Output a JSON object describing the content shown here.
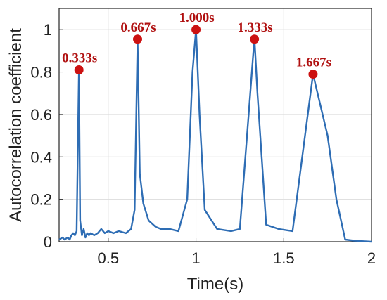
{
  "chart_data": {
    "type": "line",
    "xlabel": "Time(s)",
    "ylabel": "Autocorrelation coefficient",
    "xlim": [
      0.22,
      2.0
    ],
    "ylim": [
      0,
      1.1
    ],
    "x_ticks": [
      0.5,
      1,
      1.5,
      2
    ],
    "x_tick_labels": [
      "0.5",
      "1",
      "1.5",
      "2"
    ],
    "y_ticks": [
      0,
      0.2,
      0.4,
      0.6,
      0.8,
      1
    ],
    "y_tick_labels": [
      "0",
      "0.2",
      "0.4",
      "0.6",
      "0.8",
      "1"
    ],
    "grid": true,
    "line_color": "#2e6db4",
    "marker_color": "#cc1111",
    "label_color": "#b01010",
    "series": [
      {
        "x": [
          0.22,
          0.24,
          0.25,
          0.27,
          0.28,
          0.29,
          0.3,
          0.31,
          0.32,
          0.333,
          0.34,
          0.35,
          0.36,
          0.37,
          0.38,
          0.39,
          0.4,
          0.42,
          0.44,
          0.46,
          0.48,
          0.5,
          0.53,
          0.56,
          0.6,
          0.63,
          0.65,
          0.667,
          0.68,
          0.7,
          0.73,
          0.77,
          0.8,
          0.85,
          0.9,
          0.95,
          0.98,
          1.0,
          1.02,
          1.05,
          1.12,
          1.2,
          1.25,
          1.3,
          1.333,
          1.35,
          1.4,
          1.47,
          1.55,
          1.667,
          1.75,
          1.8,
          1.85,
          1.9,
          2.0
        ],
        "y": [
          0.01,
          0.02,
          0.01,
          0.02,
          0.01,
          0.03,
          0.04,
          0.03,
          0.05,
          0.81,
          0.1,
          0.03,
          0.06,
          0.02,
          0.04,
          0.03,
          0.04,
          0.03,
          0.04,
          0.06,
          0.04,
          0.05,
          0.04,
          0.05,
          0.04,
          0.06,
          0.15,
          0.95,
          0.32,
          0.18,
          0.1,
          0.07,
          0.06,
          0.06,
          0.05,
          0.2,
          0.8,
          1.0,
          0.6,
          0.15,
          0.06,
          0.05,
          0.06,
          0.6,
          0.96,
          0.7,
          0.08,
          0.06,
          0.05,
          0.79,
          0.5,
          0.2,
          0.01,
          0.005,
          0.0
        ]
      }
    ],
    "peaks": [
      {
        "x": 0.333,
        "y": 0.81,
        "label": "0.333s"
      },
      {
        "x": 0.667,
        "y": 0.955,
        "label": "0.667s"
      },
      {
        "x": 1.0,
        "y": 1.0,
        "label": "1.000s"
      },
      {
        "x": 1.333,
        "y": 0.955,
        "label": "1.333s"
      },
      {
        "x": 1.667,
        "y": 0.79,
        "label": "1.667s"
      }
    ]
  }
}
